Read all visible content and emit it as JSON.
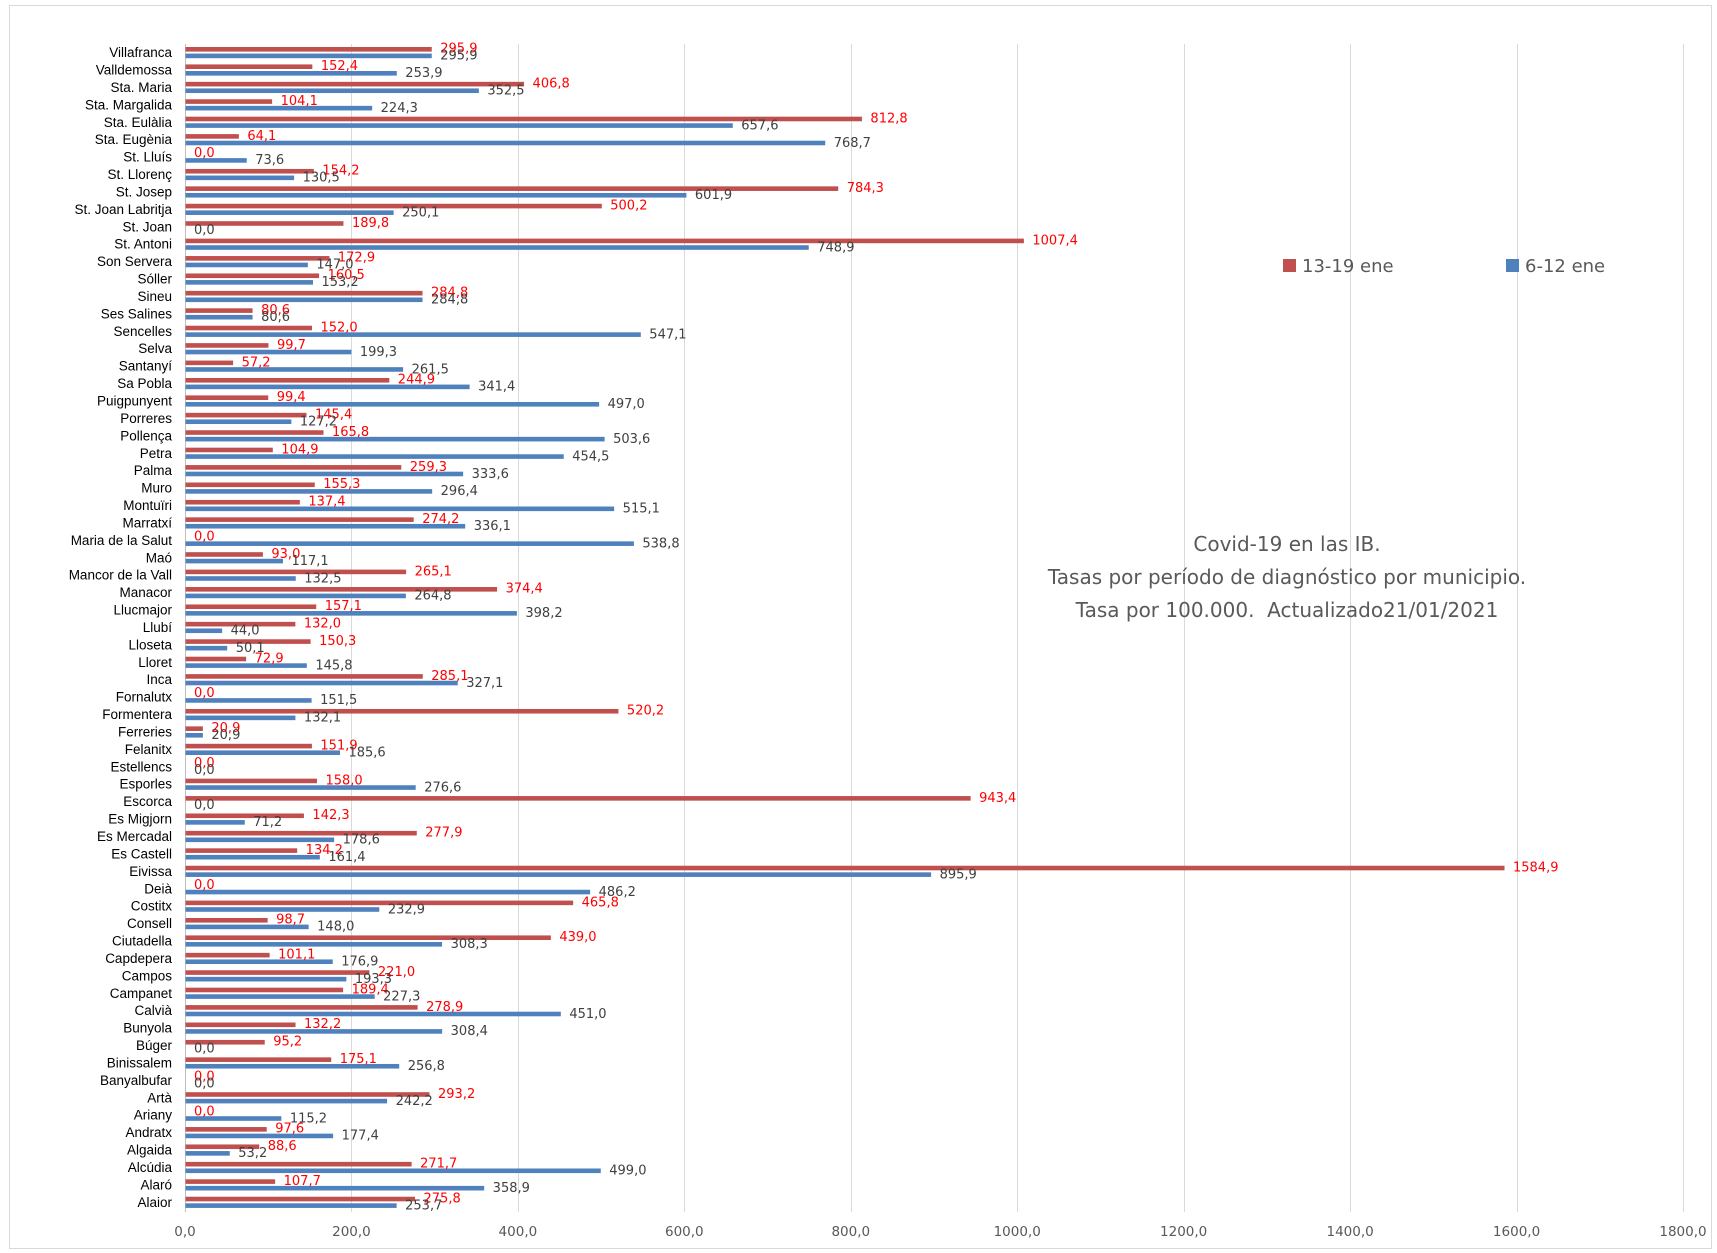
{
  "chart_data": {
    "type": "bar",
    "orientation": "horizontal",
    "title": [
      "Covid-19 en las IB.",
      "Tasas por período de diagnóstico por municipio.",
      "Tasa por 100.000.  Actualizado21/01/2021"
    ],
    "xlabel": "",
    "ylabel": "",
    "xlim": [
      0,
      1800
    ],
    "xticks": [
      0,
      200,
      400,
      600,
      800,
      1000,
      1200,
      1400,
      1600,
      1800
    ],
    "grid": true,
    "legend": "top-right",
    "categories": [
      "Villafranca",
      "Valldemossa",
      "Sta. Maria",
      "Sta. Margalida",
      "Sta. Eulàlia",
      "Sta. Eugènia",
      "St. Lluís",
      "St. Llorenç",
      "St. Josep",
      "St. Joan Labritja",
      "St. Joan",
      "St. Antoni",
      "Son Servera",
      "Sóller",
      "Sineu",
      "Ses Salines",
      "Sencelles",
      "Selva",
      "Santanyí",
      "Sa Pobla",
      "Puigpunyent",
      "Porreres",
      "Pollença",
      "Petra",
      "Palma",
      "Muro",
      "Montuïri",
      "Marratxí",
      "Maria de la Salut",
      "Maó",
      "Mancor de la Vall",
      "Manacor",
      "Llucmajor",
      "Llubí",
      "Lloseta",
      "Lloret",
      "Inca",
      "Fornalutx",
      "Formentera",
      "Ferreries",
      "Felanitx",
      "Estellencs",
      "Esporles",
      "Escorca",
      "Es Migjorn",
      "Es Mercadal",
      "Es Castell",
      "Eivissa",
      "Deià",
      "Costitx",
      "Consell",
      "Ciutadella",
      "Capdepera",
      "Campos",
      "Campanet",
      "Calvià",
      "Bunyola",
      "Búger",
      "Binissalem",
      "Banyalbufar",
      "Artà",
      "Ariany",
      "Andratx",
      "Algaida",
      "Alcúdia",
      "Alaró",
      "Alaior"
    ],
    "series": [
      {
        "name": "13-19 ene",
        "color": "#C0504D",
        "label_color": "#FF0000",
        "values": [
          295.9,
          152.4,
          406.8,
          104.1,
          812.8,
          64.1,
          0.0,
          154.2,
          784.3,
          500.2,
          189.8,
          1007.4,
          172.9,
          160.5,
          284.8,
          80.6,
          152.0,
          99.7,
          57.2,
          244.9,
          99.4,
          145.4,
          165.8,
          104.9,
          259.3,
          155.3,
          137.4,
          274.2,
          0.0,
          93.0,
          265.1,
          374.4,
          157.1,
          132.0,
          150.3,
          72.9,
          285.1,
          0.0,
          520.2,
          20.9,
          151.9,
          0.0,
          158.0,
          943.4,
          142.3,
          277.9,
          134.2,
          1584.9,
          0.0,
          465.8,
          98.7,
          439.0,
          101.1,
          221.0,
          189.4,
          278.9,
          132.2,
          95.2,
          175.1,
          0.0,
          293.2,
          0.0,
          97.6,
          88.6,
          271.7,
          107.7,
          275.8
        ]
      },
      {
        "name": "6-12 ene",
        "color": "#4F81BD",
        "label_color": "#404040",
        "values": [
          295.9,
          253.9,
          352.5,
          224.3,
          657.6,
          768.7,
          73.6,
          130.5,
          601.9,
          250.1,
          0.0,
          748.9,
          147.0,
          153.2,
          284.8,
          80.6,
          547.1,
          199.3,
          261.5,
          341.4,
          497.0,
          127.2,
          503.6,
          454.5,
          333.6,
          296.4,
          515.1,
          336.1,
          538.8,
          117.1,
          132.5,
          264.8,
          398.2,
          44.0,
          50.1,
          145.8,
          327.1,
          151.5,
          132.1,
          20.9,
          185.6,
          0.0,
          276.6,
          0.0,
          71.2,
          178.6,
          161.4,
          895.9,
          486.2,
          232.9,
          148.0,
          308.3,
          176.9,
          193.3,
          227.3,
          451.0,
          308.4,
          0.0,
          256.8,
          0.0,
          242.2,
          115.2,
          177.4,
          53.2,
          499.0,
          358.9,
          253.7
        ]
      }
    ]
  }
}
